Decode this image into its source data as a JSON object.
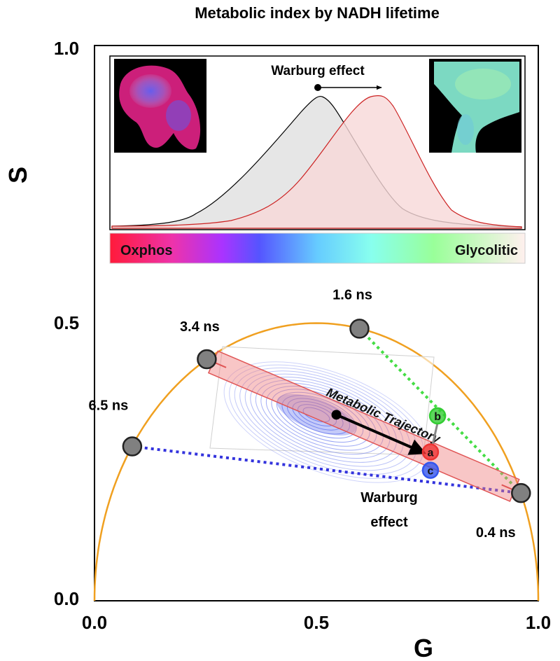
{
  "title": "Metabolic index by NADH lifetime",
  "axes": {
    "xlabel": "G",
    "ylabel": "S",
    "x_ticks": [
      "0.0",
      "0.5",
      "1.0"
    ],
    "y_ticks": [
      "0.0",
      "0.5",
      "1.0"
    ],
    "xlim": [
      0,
      1
    ],
    "ylim": [
      0,
      1
    ]
  },
  "inset": {
    "annotation": "Warburg effect",
    "colorbar_left": "Oxphos",
    "colorbar_right": "Glycolitic",
    "colors": {
      "grey_fill": "#e6e6e6",
      "red_fill": "#f8d8d8",
      "red_line": "#cc2222"
    }
  },
  "lifetimes": [
    {
      "label": "6.5 ns",
      "g": 0.085,
      "s": 0.278
    },
    {
      "label": "3.4 ns",
      "g": 0.253,
      "s": 0.435
    },
    {
      "label": "1.6 ns",
      "g": 0.597,
      "s": 0.49
    },
    {
      "label": "0.4 ns",
      "g": 0.961,
      "s": 0.194
    }
  ],
  "trajectory": {
    "label": "Metabolic Trajectory",
    "start": {
      "g": 0.545,
      "s": 0.335
    },
    "end": {
      "g": 0.76,
      "s": 0.262
    }
  },
  "points": [
    {
      "label": "b",
      "g": 0.773,
      "s": 0.333,
      "color": "#33cc33"
    },
    {
      "label": "a",
      "g": 0.757,
      "s": 0.268,
      "color": "#ee3333"
    },
    {
      "label": "c",
      "g": 0.757,
      "s": 0.235,
      "color": "#3355ee"
    }
  ],
  "warburg_label": [
    "Warburg",
    "effect"
  ],
  "colors": {
    "semicircle": "#f0a020",
    "green_dash": "#44dd44",
    "blue_dash": "#3333dd",
    "band": "#f08080",
    "contour": "#6677ee"
  }
}
